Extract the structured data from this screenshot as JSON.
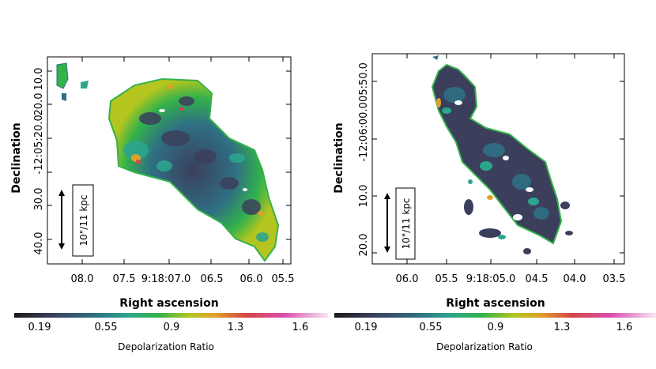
{
  "panels": [
    {
      "id": "left",
      "xlabel": "Right ascension",
      "ylabel": "Declination",
      "x_ticks": [
        "08.0",
        "07.5",
        "9:18:07.0",
        "06.5",
        "06.0",
        "05.5"
      ],
      "y_ticks": [
        "10.0",
        "20.0",
        "-12:05:20.0",
        "30.0",
        "40.0"
      ],
      "scale_bar_label": "10\"/11 kpc",
      "colorbar": {
        "title": "Depolarization Ratio",
        "ticks": [
          "0.19",
          "0.55",
          "0.9",
          "1.3",
          "1.6"
        ]
      }
    },
    {
      "id": "right",
      "xlabel": "Right ascension",
      "ylabel": "Declination",
      "x_ticks": [
        "06.0",
        "05.5",
        "9:18:05.0",
        "04.5",
        "04.0",
        "03.5"
      ],
      "y_ticks": [
        "20.0",
        "10.0",
        "-12:06:00.0",
        "05:50.0"
      ],
      "scale_bar_label": "10\"/11 kpc",
      "colorbar": {
        "title": "Depolarization Ratio",
        "ticks": [
          "0.19",
          "0.55",
          "0.9",
          "1.3",
          "1.6"
        ]
      }
    }
  ],
  "colors": {
    "cmap": [
      "#1a1a1a",
      "#3b3f5c",
      "#2f6f84",
      "#2ca58d",
      "#33b24a",
      "#b5c51f",
      "#e0a12a",
      "#d64545",
      "#d94fb0",
      "#f3d4f0"
    ]
  }
}
